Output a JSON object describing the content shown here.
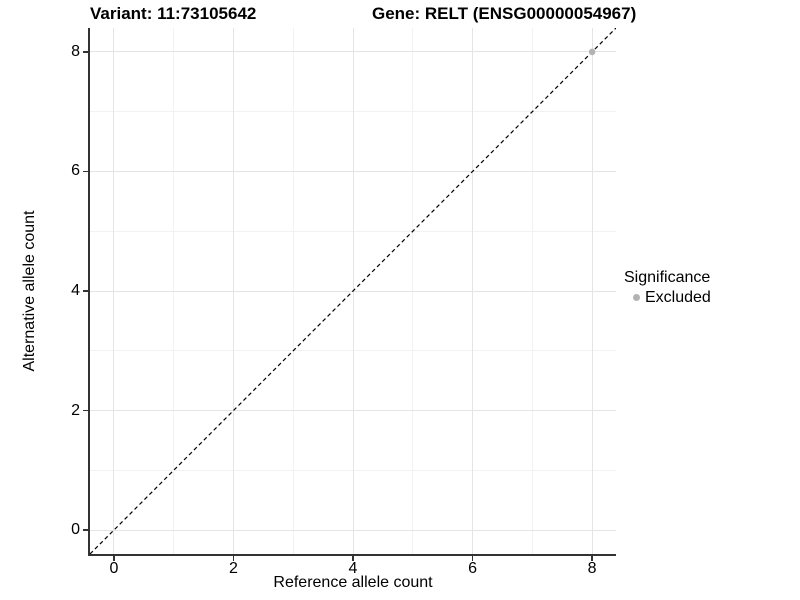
{
  "title": {
    "variant": "Variant: 11:73105642",
    "gene": "Gene: RELT (ENSG00000054967)"
  },
  "legend": {
    "title": "Significance",
    "items": [
      {
        "label": "Excluded",
        "color": "#b3b3b3"
      }
    ]
  },
  "chart_data": {
    "type": "scatter",
    "title_left": "Variant: 11:73105642",
    "title_right": "Gene: RELT (ENSG00000054967)",
    "xlabel": "Reference allele count",
    "ylabel": "Alternative allele count",
    "xlim": [
      -0.4,
      8.4
    ],
    "ylim": [
      -0.4,
      8.4
    ],
    "x_major_ticks": [
      0,
      2,
      4,
      6,
      8
    ],
    "y_major_ticks": [
      0,
      2,
      4,
      6,
      8
    ],
    "x_minor_ticks": [
      1,
      3,
      5,
      7
    ],
    "y_minor_ticks": [
      1,
      3,
      5,
      7
    ],
    "grid": true,
    "legend_position": "right",
    "series": [
      {
        "name": "Excluded",
        "color": "#b3b3b3",
        "points": [
          {
            "x": 8,
            "y": 8
          }
        ]
      }
    ],
    "reference_line": {
      "kind": "identity y=x",
      "style": "dashed",
      "color": "#000000",
      "from": [
        -0.4,
        -0.4
      ],
      "to": [
        8.4,
        8.4
      ]
    }
  },
  "colors": {
    "background": "#ffffff",
    "grid_major": "#e4e4e4",
    "grid_minor": "#f2f2f2",
    "axis_line": "#333333",
    "tick": "#333333",
    "text": "#000000",
    "excluded_point": "#b3b3b3"
  }
}
